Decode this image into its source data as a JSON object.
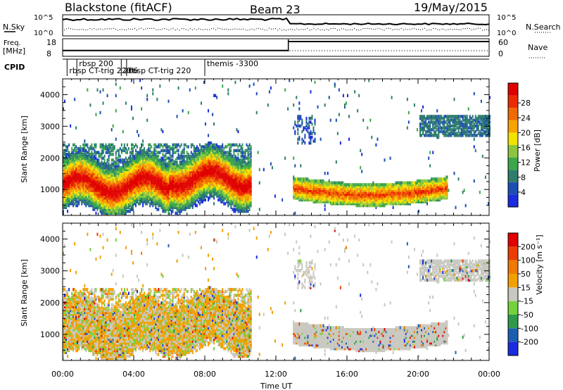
{
  "header": {
    "station": "Blackstone (fitACF)",
    "beam": "Beam 23",
    "date": "19/May/2015"
  },
  "status_panels": {
    "nsky_label": "N.Sky",
    "nsearch_label": "N.Search",
    "freq_label_1": "Freq.",
    "freq_label_2": "[MHz]",
    "nave_label": "Nave",
    "cpid_label": "CPID",
    "noise_left_ticks": [
      "10^5",
      "10^0"
    ],
    "noise_right_ticks": [
      "10^5",
      "10^0"
    ],
    "freq_ticks": [
      "18",
      "8"
    ],
    "nave_ticks": [
      "60",
      "0"
    ],
    "cpid_entries": [
      {
        "label": "rbsp 200",
        "start_hour": 0.8
      },
      {
        "label": "rbsp CT-trig 220",
        "start_hour": 0.25
      },
      {
        "label": "206",
        "start_hour": 3.3
      },
      {
        "label": "rbsp CT-trig 220",
        "start_hour": 3.6
      },
      {
        "label": "themis -3300",
        "start_hour": 8.0
      }
    ]
  },
  "axes": {
    "x_label": "Time UT",
    "x_ticks": [
      "00:00",
      "04:00",
      "08:00",
      "12:00",
      "16:00",
      "20:00",
      "00:00"
    ],
    "y_label": "Slant Range [km]",
    "y_ticks": [
      "1000",
      "2000",
      "3000",
      "4000"
    ]
  },
  "colorbars": {
    "power": {
      "label": "Power [dB]",
      "ticks": [
        "4",
        "8",
        "12",
        "16",
        "20",
        "24",
        "28"
      ],
      "colors": [
        "#1a2be0",
        "#1d4fb3",
        "#2e7d6b",
        "#3aa84a",
        "#8cc63e",
        "#f2e200",
        "#f7a400",
        "#f06a00",
        "#ec2c00",
        "#e00000"
      ]
    },
    "velocity": {
      "label": "Velocity [m s⁻¹]",
      "ticks": [
        "200",
        "100",
        "50",
        "15",
        "-15",
        "-50",
        "-100",
        "-200"
      ],
      "colors": [
        "#1a2be0",
        "#1c5fb0",
        "#2e9a4a",
        "#74d23a",
        "#c8c8c0",
        "#f2a000",
        "#f07a00",
        "#ec3c00",
        "#e00000"
      ]
    }
  },
  "chart_data": {
    "type": "heatmap",
    "title": "Blackstone (fitACF)  Beam 23  19/May/2015",
    "xlabel": "Time UT",
    "ylabel": "Slant Range [km]",
    "xlim_hours": [
      0,
      24
    ],
    "ylim_km": [
      180,
      4500
    ],
    "x_ticks": [
      "00:00",
      "04:00",
      "08:00",
      "12:00",
      "16:00",
      "20:00",
      "00:00"
    ],
    "y_ticks": [
      1000,
      2000,
      3000,
      4000
    ],
    "noise_sky_level": "about 10^4 from 00:00 to 12:40, about 10^3.5 after",
    "noise_search_level": "about 10^0.5",
    "frequency_mhz": [
      {
        "from_hour": 0,
        "to_hour": 12.7,
        "value": 10.5
      },
      {
        "from_hour": 12.7,
        "to_hour": 24,
        "value": 18
      }
    ],
    "nave": "about 25 throughout",
    "power_db": {
      "colorbar_ticks": [
        4,
        8,
        12,
        16,
        20,
        24,
        28
      ],
      "regions": [
        {
          "name": "early F-region band",
          "from_hour": 0,
          "to_hour": 10.5,
          "range_km": [
            600,
            2400
          ],
          "peak_db": 26
        },
        {
          "name": "evening band",
          "from_hour": 13.0,
          "to_hour": 21.5,
          "range_km": [
            500,
            1300
          ],
          "peak_db": 22
        },
        {
          "name": "late high-range echoes",
          "from_hour": 20.0,
          "to_hour": 24,
          "range_km": [
            2600,
            3500
          ],
          "peak_db": 8
        },
        {
          "name": "mid-day patch",
          "from_hour": 13.0,
          "to_hour": 14.2,
          "range_km": [
            2400,
            3300
          ],
          "peak_db": 8
        }
      ]
    },
    "velocity_ms": {
      "colorbar_ticks": [
        200,
        100,
        50,
        15,
        -15,
        -50,
        -100,
        -200
      ],
      "regions": [
        {
          "name": "early band",
          "from_hour": 0,
          "to_hour": 10.5,
          "range_km": [
            600,
            2400
          ],
          "dominant": "-15 to -100 (orange) mixed with ground scatter"
        },
        {
          "name": "evening band",
          "from_hour": 13.0,
          "to_hour": 21.5,
          "range_km": [
            500,
            1300
          ],
          "dominant": "ground scatter (grey)"
        },
        {
          "name": "late high-range echoes",
          "from_hour": 20.0,
          "to_hour": 24,
          "range_km": [
            2600,
            3500
          ],
          "dominant": "ground scatter (grey)"
        }
      ]
    }
  }
}
